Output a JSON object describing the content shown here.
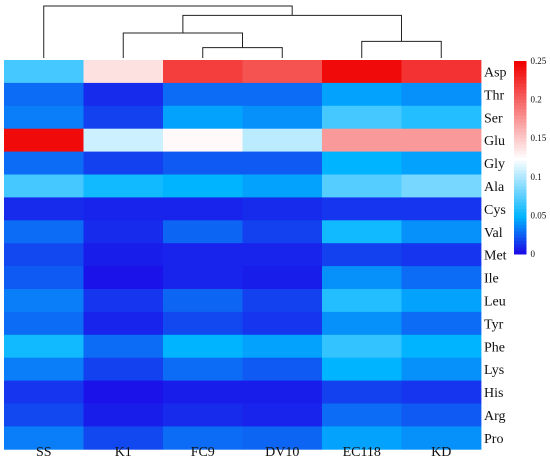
{
  "chart_data": {
    "type": "heatmap",
    "title": "",
    "xlabel": "",
    "ylabel": "",
    "columns": [
      "SS",
      "K1",
      "FC9",
      "DV10",
      "EC118",
      "KD"
    ],
    "rows": [
      "Asp",
      "Thr",
      "Ser",
      "Glu",
      "Gly",
      "Ala",
      "Cys",
      "Val",
      "Met",
      "Ile",
      "Leu",
      "Tyr",
      "Phe",
      "Lys",
      "His",
      "Arg",
      "Pro"
    ],
    "values": [
      [
        0.07,
        0.14,
        0.22,
        0.21,
        0.245,
        0.225
      ],
      [
        0.03,
        0.012,
        0.03,
        0.03,
        0.045,
        0.04
      ],
      [
        0.035,
        0.018,
        0.045,
        0.04,
        0.07,
        0.06
      ],
      [
        0.245,
        0.11,
        0.128,
        0.105,
        0.175,
        0.175
      ],
      [
        0.03,
        0.018,
        0.025,
        0.025,
        0.05,
        0.045
      ],
      [
        0.07,
        0.055,
        0.05,
        0.045,
        0.075,
        0.085
      ],
      [
        0.012,
        0.01,
        0.01,
        0.012,
        0.015,
        0.015
      ],
      [
        0.03,
        0.012,
        0.028,
        0.018,
        0.055,
        0.04
      ],
      [
        0.02,
        0.008,
        0.01,
        0.01,
        0.018,
        0.015
      ],
      [
        0.025,
        0.005,
        0.01,
        0.008,
        0.04,
        0.03
      ],
      [
        0.035,
        0.015,
        0.028,
        0.018,
        0.06,
        0.045
      ],
      [
        0.03,
        0.01,
        0.02,
        0.015,
        0.04,
        0.03
      ],
      [
        0.055,
        0.03,
        0.05,
        0.045,
        0.065,
        0.05
      ],
      [
        0.035,
        0.018,
        0.03,
        0.025,
        0.05,
        0.04
      ],
      [
        0.015,
        0.005,
        0.008,
        0.008,
        0.018,
        0.015
      ],
      [
        0.02,
        0.008,
        0.012,
        0.01,
        0.03,
        0.025
      ],
      [
        0.035,
        0.02,
        0.03,
        0.028,
        0.045,
        0.04
      ]
    ],
    "colorbar": {
      "min": 0,
      "max": 0.25,
      "ticks": [
        "0",
        "0.05",
        "0.1",
        "0.15",
        "0.2",
        "0.25"
      ],
      "tick_values": [
        0,
        0.05,
        0.1,
        0.15,
        0.2,
        0.25
      ],
      "colors": {
        "low": "#1e00e6",
        "mid_low": "#00b4ff",
        "mid": "#ffffff",
        "high": "#f00000"
      }
    },
    "dendrogram": {
      "leaves": [
        "SS",
        "K1",
        "FC9",
        "DV10",
        "EC118",
        "KD"
      ],
      "merges": [
        {
          "a": "FC9",
          "b": "DV10",
          "height": 0.2
        },
        {
          "a": "EC118",
          "b": "KD",
          "height": 0.32
        },
        {
          "a": "K1",
          "b": "FC9+DV10",
          "height": 0.48
        },
        {
          "a": "K1+FC9+DV10",
          "b": "EC118+KD",
          "height": 0.82
        },
        {
          "a": "SS",
          "b": "K1+FC9+DV10+EC118+KD",
          "height": 1.0
        }
      ]
    }
  }
}
